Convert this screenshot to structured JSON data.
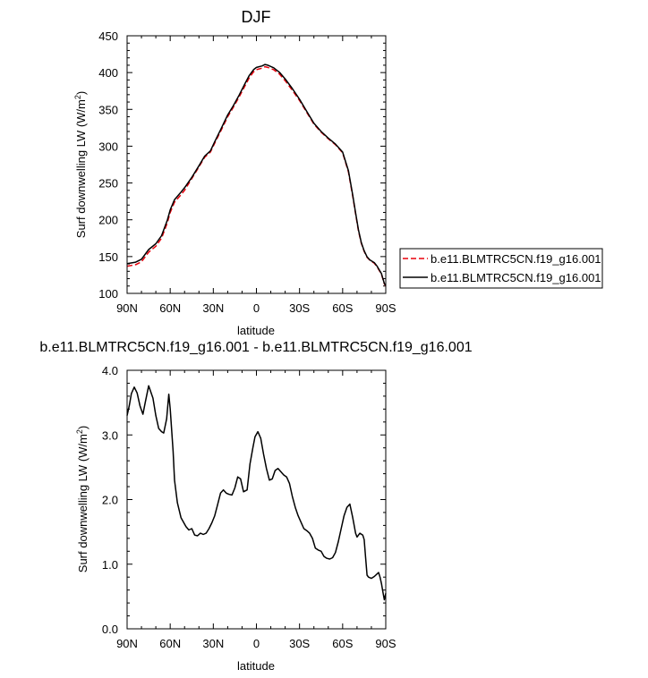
{
  "chart_data": [
    {
      "type": "line",
      "title": "DJF",
      "xlabel": "latitude",
      "ylabel": "Surf downwelling LW (W/m",
      "ylabel_sup": "2",
      "ylabel_tail": ")",
      "xlim": [
        90,
        -90
      ],
      "ylim": [
        100,
        450
      ],
      "x_ticks": [
        {
          "v": 90,
          "label": "90N"
        },
        {
          "v": 60,
          "label": "60N"
        },
        {
          "v": 30,
          "label": "30N"
        },
        {
          "v": 0,
          "label": "0"
        },
        {
          "v": -30,
          "label": "30S"
        },
        {
          "v": -60,
          "label": "60S"
        },
        {
          "v": -90,
          "label": "90S"
        }
      ],
      "y_ticks": [
        {
          "v": 100,
          "label": "100"
        },
        {
          "v": 150,
          "label": "150"
        },
        {
          "v": 200,
          "label": "200"
        },
        {
          "v": 250,
          "label": "250"
        },
        {
          "v": 300,
          "label": "300"
        },
        {
          "v": 350,
          "label": "350"
        },
        {
          "v": 400,
          "label": "400"
        },
        {
          "v": 450,
          "label": "450"
        }
      ],
      "legend": "right",
      "x": [
        90,
        84,
        80,
        75,
        70,
        66,
        62,
        60,
        57,
        53,
        50,
        45,
        40,
        36,
        32,
        29,
        25,
        20,
        16,
        12,
        8,
        5,
        2,
        0,
        -4,
        -6,
        -8,
        -12,
        -16,
        -20,
        -25,
        -30,
        -35,
        -40,
        -45,
        -50,
        -55,
        -60,
        -64,
        -67,
        -69,
        -71,
        -73,
        -75,
        -77,
        -79,
        -82,
        -84,
        -87,
        -89,
        -90
      ],
      "series": [
        {
          "name": "b.e11.BLMTRC5CN.f19_g16.001",
          "color": "#e8000b",
          "dash": true,
          "values": [
            137,
            139,
            143,
            156,
            164,
            175,
            196,
            210,
            224,
            233,
            240,
            256,
            272,
            285,
            292,
            304,
            320,
            340,
            353,
            367,
            382,
            393,
            401,
            404,
            406,
            408,
            407,
            404,
            398,
            389,
            376,
            362,
            346,
            330,
            319,
            310,
            302,
            291,
            265,
            232,
            208,
            185,
            168,
            157,
            149,
            145,
            141,
            136,
            126,
            113,
            110
          ]
        },
        {
          "name": "b.e11.BLMTRC5CN.f19_g16.001",
          "color": "#000000",
          "dash": false,
          "values": [
            140.5,
            142.4,
            146.4,
            159.5,
            167.4,
            178.4,
            199.6,
            213.5,
            227.4,
            236.4,
            243.5,
            257.6,
            273.4,
            286.5,
            293.6,
            306.1,
            322.2,
            342.4,
            355.2,
            369.4,
            385,
            396,
            404,
            407,
            409,
            411,
            410,
            406.5,
            400.4,
            391.4,
            378.3,
            363.7,
            347.3,
            331.1,
            320,
            311,
            302.8,
            292,
            266.6,
            233.5,
            209.4,
            186.3,
            168.9,
            157.7,
            149.7,
            145.5,
            141.8,
            136.8,
            126.9,
            113.5,
            110.5
          ]
        }
      ]
    },
    {
      "type": "line",
      "title": "b.e11.BLMTRC5CN.f19_g16.001 - b.e11.BLMTRC5CN.f19_g16.001",
      "xlabel": "latitude",
      "ylabel": "Surf downwelling LW (W/m",
      "ylabel_sup": "2",
      "ylabel_tail": ")",
      "xlim": [
        90,
        -90
      ],
      "ylim": [
        0,
        4
      ],
      "x_ticks": [
        {
          "v": 90,
          "label": "90N"
        },
        {
          "v": 60,
          "label": "60N"
        },
        {
          "v": 30,
          "label": "30N"
        },
        {
          "v": 0,
          "label": "0"
        },
        {
          "v": -30,
          "label": "30S"
        },
        {
          "v": -60,
          "label": "60S"
        },
        {
          "v": -90,
          "label": "90S"
        }
      ],
      "y_ticks": [
        {
          "v": 0,
          "label": "0.0"
        },
        {
          "v": 1,
          "label": "1.0"
        },
        {
          "v": 2,
          "label": "2.0"
        },
        {
          "v": 3,
          "label": "3.0"
        },
        {
          "v": 4,
          "label": "4.0"
        }
      ],
      "x": [
        90,
        88.5,
        87,
        85,
        83,
        81,
        79,
        77.5,
        75,
        72,
        70,
        68,
        66,
        64.5,
        62.5,
        61,
        60,
        58,
        57,
        55,
        52.5,
        49,
        47,
        45,
        43,
        41,
        39,
        37,
        35,
        33,
        31,
        29,
        27,
        25,
        23,
        21,
        19,
        17,
        15,
        13,
        11,
        9,
        6.5,
        4.5,
        2.5,
        1,
        -1,
        -3,
        -5,
        -7,
        -9,
        -11,
        -13,
        -15,
        -17,
        -19,
        -21,
        -23,
        -25,
        -27,
        -29,
        -31,
        -33,
        -35,
        -37,
        -39,
        -41,
        -43,
        -45,
        -47,
        -49,
        -51,
        -53,
        -55,
        -57,
        -59,
        -61,
        -63,
        -65,
        -67,
        -68,
        -69,
        -70,
        -72,
        -74,
        -75,
        -76,
        -77,
        -78,
        -80,
        -82,
        -84,
        -85,
        -86,
        -87,
        -88,
        -89,
        -90
      ],
      "series": [
        {
          "name": "",
          "color": "#000000",
          "dash": false,
          "values": [
            3.3,
            3.45,
            3.64,
            3.74,
            3.65,
            3.45,
            3.32,
            3.49,
            3.76,
            3.57,
            3.3,
            3.1,
            3.05,
            3.03,
            3.25,
            3.63,
            3.4,
            2.75,
            2.3,
            1.95,
            1.72,
            1.58,
            1.53,
            1.55,
            1.45,
            1.44,
            1.48,
            1.46,
            1.48,
            1.55,
            1.64,
            1.75,
            1.92,
            2.1,
            2.15,
            2.1,
            2.08,
            2.07,
            2.18,
            2.35,
            2.32,
            2.12,
            2.15,
            2.55,
            2.8,
            2.97,
            3.05,
            2.95,
            2.7,
            2.48,
            2.3,
            2.32,
            2.45,
            2.48,
            2.43,
            2.38,
            2.35,
            2.25,
            2.05,
            1.88,
            1.75,
            1.65,
            1.55,
            1.52,
            1.48,
            1.4,
            1.25,
            1.22,
            1.2,
            1.12,
            1.09,
            1.08,
            1.1,
            1.18,
            1.35,
            1.55,
            1.75,
            1.88,
            1.93,
            1.72,
            1.6,
            1.48,
            1.42,
            1.48,
            1.45,
            1.38,
            1.1,
            0.83,
            0.8,
            0.78,
            0.81,
            0.85,
            0.87,
            0.8,
            0.7,
            0.57,
            0.45,
            0.55
          ]
        }
      ]
    }
  ]
}
